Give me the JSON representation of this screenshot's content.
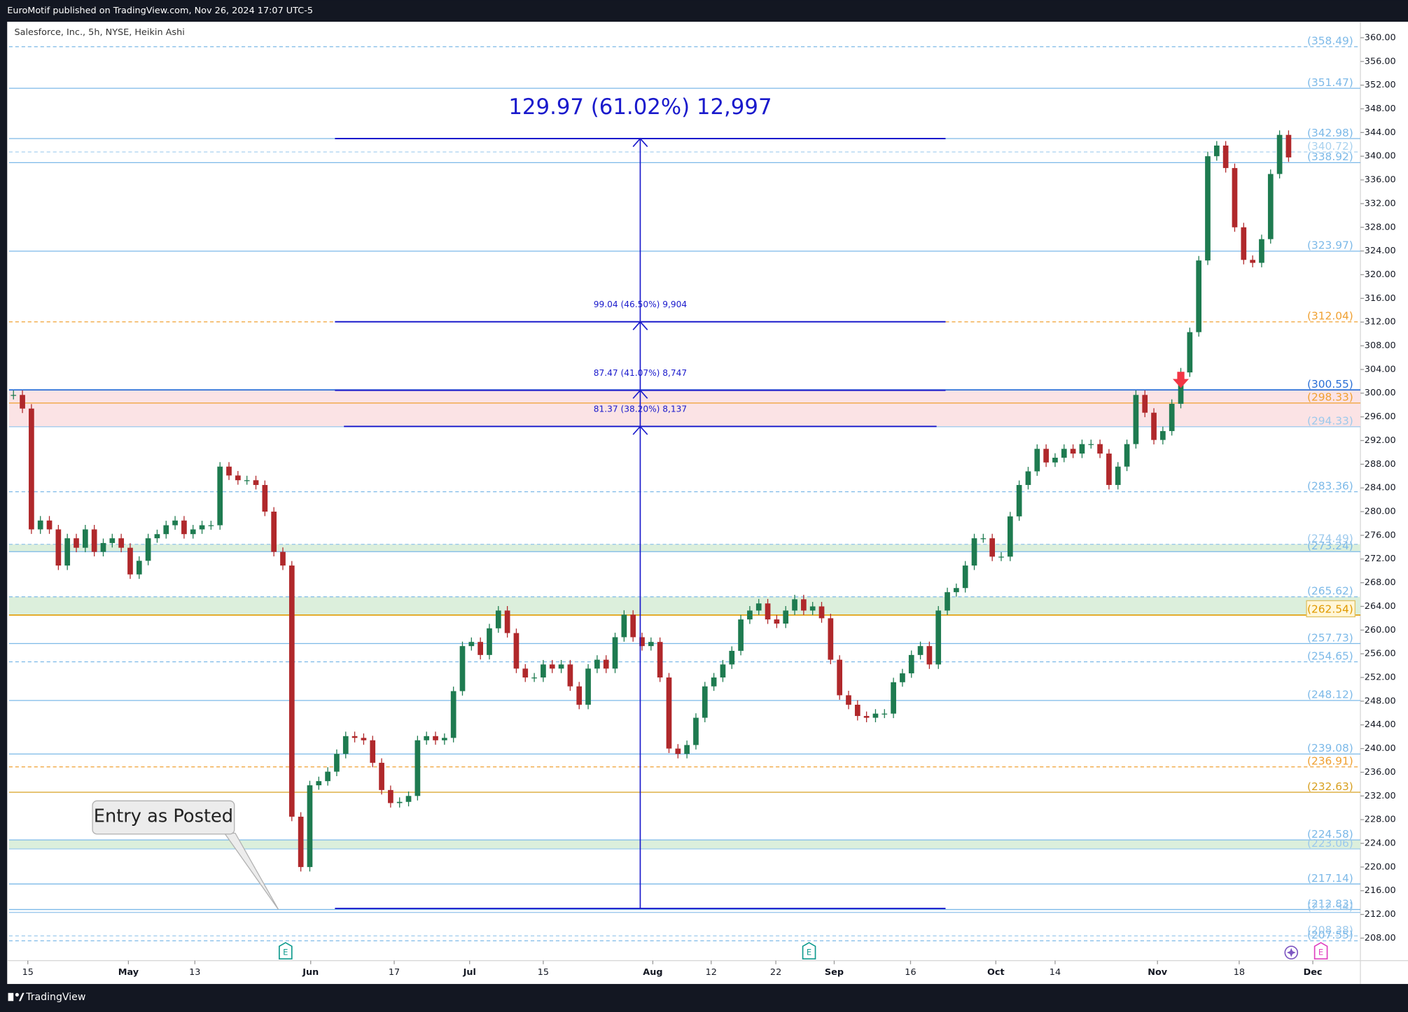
{
  "header": {
    "publisher": "EuroMotif published on TradingView.com, Nov 26, 2024 17:07 UTC-5"
  },
  "footer": {
    "brand": "TradingView"
  },
  "chart_data": {
    "type": "candlestick",
    "title": "Salesforce, Inc., 5h, NYSE, Heikin Ashi",
    "up_color": "#1e7b50",
    "down_color": "#b0282b",
    "values": [
      299.7,
      297.4,
      277.0,
      278.5,
      277.0,
      270.9,
      275.5,
      273.9,
      277.0,
      273.2,
      274.7,
      275.5,
      273.9,
      269.4,
      271.7,
      275.5,
      276.2,
      277.7,
      278.5,
      276.2,
      277.0,
      277.7,
      277.7,
      287.6,
      286.1,
      285.3,
      285.3,
      284.5,
      280.0,
      273.2,
      270.9,
      228.5,
      220.0,
      233.8,
      234.5,
      236.1,
      239.1,
      242.1,
      241.8,
      241.4,
      237.6,
      233.0,
      230.8,
      231.0,
      232.0,
      241.4,
      242.1,
      241.4,
      241.8,
      249.7,
      257.3,
      258.0,
      255.8,
      260.3,
      263.3,
      259.5,
      253.5,
      252.0,
      252.0,
      254.2,
      253.5,
      254.2,
      250.5,
      247.4,
      253.5,
      255.0,
      253.5,
      258.8,
      262.6,
      258.8,
      257.3,
      258.0,
      252.0,
      240.0,
      239.1,
      240.6,
      245.2,
      250.5,
      252.0,
      254.2,
      256.5,
      261.8,
      263.3,
      264.5,
      261.8,
      261.1,
      263.3,
      265.2,
      263.3,
      264.0,
      262.0,
      255.0,
      249.0,
      247.4,
      245.5,
      245.2,
      245.9,
      245.9,
      251.2,
      252.7,
      255.8,
      257.3,
      254.2,
      263.3,
      266.4,
      267.1,
      270.9,
      275.5,
      275.5,
      272.4,
      272.4,
      279.2,
      284.5,
      286.8,
      290.6,
      288.3,
      289.1,
      290.6,
      289.8,
      291.4,
      291.4,
      289.8,
      284.5,
      287.6,
      291.4,
      299.7,
      296.7,
      292.1,
      293.6,
      298.2,
      303.5,
      310.3,
      322.4,
      340.0,
      341.8,
      338.0,
      328.0,
      322.5,
      322.0,
      326.0,
      337.0,
      343.6,
      339.8
    ],
    "xlim": [
      -0.5,
      150
    ],
    "xticks": [
      {
        "value": 1.6,
        "label": "15"
      },
      {
        "value": 12.8,
        "label": "May"
      },
      {
        "value": 20.2,
        "label": "13"
      },
      {
        "value": 33.1,
        "label": "Jun"
      },
      {
        "value": 42.4,
        "label": "17"
      },
      {
        "value": 50.8,
        "label": "Jul"
      },
      {
        "value": 59.0,
        "label": "15"
      },
      {
        "value": 71.2,
        "label": "Aug"
      },
      {
        "value": 77.7,
        "label": "12"
      },
      {
        "value": 84.9,
        "label": "22"
      },
      {
        "value": 91.4,
        "label": "Sep"
      },
      {
        "value": 99.9,
        "label": "16"
      },
      {
        "value": 109.4,
        "label": "Oct"
      },
      {
        "value": 116.0,
        "label": "14"
      },
      {
        "value": 127.4,
        "label": "Nov"
      },
      {
        "value": 136.5,
        "label": "18"
      },
      {
        "value": 144.7,
        "label": "Dec"
      }
    ],
    "ylim": [
      204.2,
      362.7
    ],
    "yticks": [
      {
        "value": 208,
        "label": "208.00"
      },
      {
        "value": 212,
        "label": "212.00"
      },
      {
        "value": 216,
        "label": "216.00"
      },
      {
        "value": 220,
        "label": "220.00"
      },
      {
        "value": 224,
        "label": "224.00"
      },
      {
        "value": 228,
        "label": "228.00"
      },
      {
        "value": 232,
        "label": "232.00"
      },
      {
        "value": 236,
        "label": "236.00"
      },
      {
        "value": 240,
        "label": "240.00"
      },
      {
        "value": 244,
        "label": "244.00"
      },
      {
        "value": 248,
        "label": "248.00"
      },
      {
        "value": 252,
        "label": "252.00"
      },
      {
        "value": 256,
        "label": "256.00"
      },
      {
        "value": 260,
        "label": "260.00"
      },
      {
        "value": 264,
        "label": "264.00"
      },
      {
        "value": 268,
        "label": "268.00"
      },
      {
        "value": 272,
        "label": "272.00"
      },
      {
        "value": 276,
        "label": "276.00"
      },
      {
        "value": 280,
        "label": "280.00"
      },
      {
        "value": 284,
        "label": "284.00"
      },
      {
        "value": 288,
        "label": "288.00"
      },
      {
        "value": 292,
        "label": "292.00"
      },
      {
        "value": 296,
        "label": "296.00"
      },
      {
        "value": 300,
        "label": "300.00"
      },
      {
        "value": 304,
        "label": "304.00"
      },
      {
        "value": 308,
        "label": "308.00"
      },
      {
        "value": 312,
        "label": "312.00"
      },
      {
        "value": 316,
        "label": "316.00"
      },
      {
        "value": 320,
        "label": "320.00"
      },
      {
        "value": 324,
        "label": "324.00"
      },
      {
        "value": 328,
        "label": "328.00"
      },
      {
        "value": 332,
        "label": "332.00"
      },
      {
        "value": 336,
        "label": "336.00"
      },
      {
        "value": 340,
        "label": "340.00"
      },
      {
        "value": 344,
        "label": "344.00"
      },
      {
        "value": 348,
        "label": "348.00"
      },
      {
        "value": 352,
        "label": "352.00"
      },
      {
        "value": 356,
        "label": "356.00"
      },
      {
        "value": 360,
        "label": "360.00"
      }
    ],
    "zones": [
      {
        "from": 294.33,
        "to": 300.55,
        "color": "#fbe3e5"
      },
      {
        "from": 273.24,
        "to": 274.49,
        "color": "#dcefdc"
      },
      {
        "from": 262.54,
        "to": 265.62,
        "color": "#dcefdc"
      },
      {
        "from": 223.06,
        "to": 224.58,
        "color": "#dcefdc"
      }
    ],
    "levels": [
      {
        "value": 358.49,
        "label": "(358.49)",
        "color": "#7cb9e8",
        "style": "dashed"
      },
      {
        "value": 351.47,
        "label": "(351.47)",
        "color": "#7cb9e8",
        "style": "solid"
      },
      {
        "value": 342.98,
        "label": "(342.98)",
        "color": "#7cb9e8",
        "style": "solid"
      },
      {
        "value": 340.72,
        "label": "(340.72)",
        "color": "#a9d2ef",
        "style": "dashed"
      },
      {
        "value": 338.92,
        "label": "(338.92)",
        "color": "#7cb9e8",
        "style": "solid"
      },
      {
        "value": 323.97,
        "label": "(323.97)",
        "color": "#7cb9e8",
        "style": "solid"
      },
      {
        "value": 312.04,
        "label": "(312.04)",
        "color": "#f0a030",
        "style": "dashed"
      },
      {
        "value": 300.55,
        "label": "(300.55)",
        "color": "#2a6fd6",
        "style": "solid",
        "emphasis": true
      },
      {
        "value": 298.33,
        "label": "(298.33)",
        "color": "#f0a030",
        "style": "solid"
      },
      {
        "value": 294.33,
        "label": "(294.33)",
        "color": "#9cc9ec",
        "style": "solid"
      },
      {
        "value": 283.36,
        "label": "(283.36)",
        "color": "#7cb9e8",
        "style": "dashed"
      },
      {
        "value": 274.49,
        "label": "(274.49)",
        "color": "#9cc9ec",
        "style": "dashed"
      },
      {
        "value": 273.24,
        "label": "(273.24)",
        "color": "#7cb9e8",
        "style": "solid"
      },
      {
        "value": 265.62,
        "label": "(265.62)",
        "color": "#7cb9e8",
        "style": "dashed"
      },
      {
        "value": 262.54,
        "label": "(262.54)",
        "color": "#e09a00",
        "style": "solid",
        "emphasis": true
      },
      {
        "value": 257.73,
        "label": "(257.73)",
        "color": "#7cb9e8",
        "style": "solid"
      },
      {
        "value": 254.65,
        "label": "(254.65)",
        "color": "#7cb9e8",
        "style": "dashed"
      },
      {
        "value": 248.12,
        "label": "(248.12)",
        "color": "#7cb9e8",
        "style": "solid"
      },
      {
        "value": 239.08,
        "label": "(239.08)",
        "color": "#7cb9e8",
        "style": "solid"
      },
      {
        "value": 236.91,
        "label": "(236.91)",
        "color": "#f0a030",
        "style": "dashed"
      },
      {
        "value": 232.63,
        "label": "(232.63)",
        "color": "#d8a020",
        "style": "solid"
      },
      {
        "value": 224.58,
        "label": "(224.58)",
        "color": "#7cb9e8",
        "style": "solid"
      },
      {
        "value": 223.06,
        "label": "(223.06)",
        "color": "#9cc9ec",
        "style": "solid"
      },
      {
        "value": 217.14,
        "label": "(217.14)",
        "color": "#7cb9e8",
        "style": "solid"
      },
      {
        "value": 212.83,
        "label": "(212.83)",
        "color": "#7cb9e8",
        "style": "solid"
      },
      {
        "value": 212.34,
        "label": "(212.34)",
        "color": "#9cc9ec",
        "style": "solid"
      },
      {
        "value": 208.38,
        "label": "(208.38)",
        "color": "#9cc9ec",
        "style": "dashed"
      },
      {
        "value": 207.55,
        "label": "(207.55)",
        "color": "#7cb9e8",
        "style": "dashed"
      }
    ],
    "measure_base": 213.01,
    "measurements": [
      {
        "change": 129.97,
        "label": "129.97 (61.02%) 12,997"
      },
      {
        "change": 99.04,
        "label": "99.04 (46.50%) 9,904"
      },
      {
        "change": 87.47,
        "label": "87.47 (41.07%) 8,747"
      },
      {
        "change": 81.37,
        "label": "81.37 (38.20%) 8,137"
      }
    ],
    "annotations": [
      "Entry as Posted"
    ],
    "event_markers": [
      "E",
      "E",
      "E"
    ]
  }
}
